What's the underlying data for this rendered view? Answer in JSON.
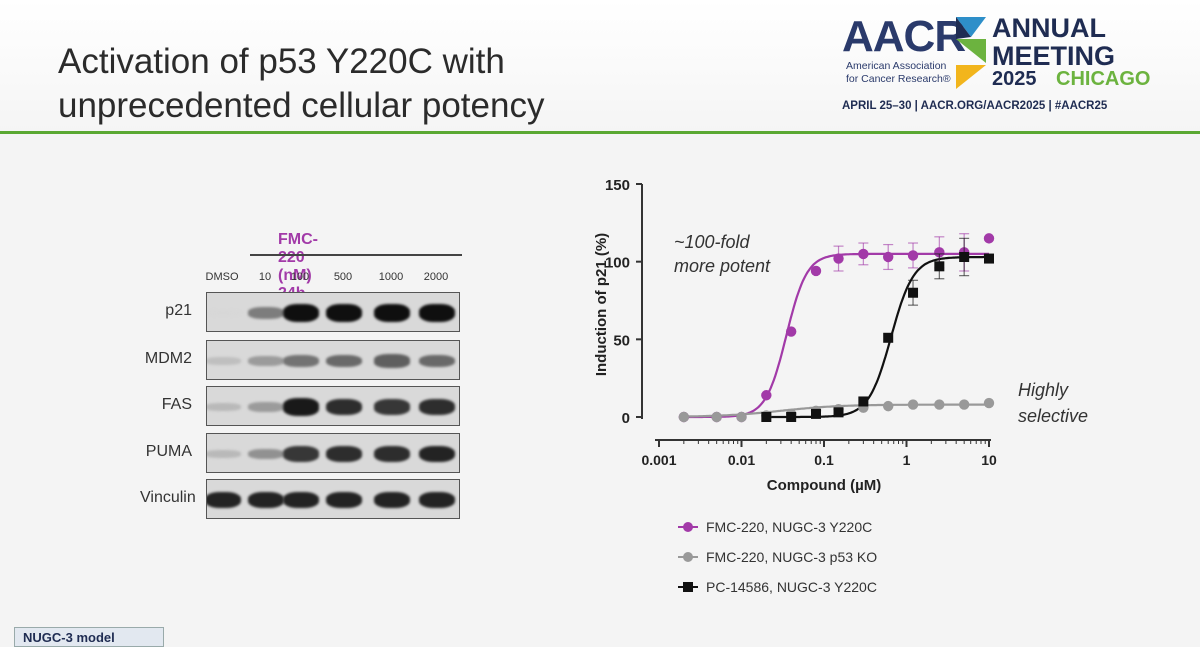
{
  "slide": {
    "title_line1": "Activation of p53 Y220C with",
    "title_line2": "unprecedented cellular potency",
    "footer_tag": "NUGC-3 model"
  },
  "logo": {
    "aacr": "AACR",
    "assoc_line1": "American Association",
    "assoc_line2": "for Cancer Research®",
    "annual": "ANNUAL",
    "meeting": "MEETING",
    "year": "2025",
    "city": "CHICAGO",
    "dates": "APRIL 25–30  |  AACR.ORG/AACR2025  |  #AACR25",
    "colors": {
      "navy": "#1f2c52",
      "green": "#6cb33f",
      "accent_line": "#5aa832"
    }
  },
  "blot": {
    "treatment_label": "FMC-220 (nM) 24h",
    "lanes": [
      "DMSO",
      "10",
      "100",
      "500",
      "1000",
      "2000"
    ],
    "rows": [
      {
        "label": "p21",
        "intensity": [
          0.0,
          0.45,
          1.0,
          1.0,
          1.0,
          1.0
        ]
      },
      {
        "label": "MDM2",
        "intensity": [
          0.12,
          0.3,
          0.5,
          0.55,
          0.6,
          0.55
        ]
      },
      {
        "label": "FAS",
        "intensity": [
          0.15,
          0.3,
          0.95,
          0.85,
          0.8,
          0.85
        ]
      },
      {
        "label": "PUMA",
        "intensity": [
          0.15,
          0.35,
          0.8,
          0.85,
          0.85,
          0.9
        ]
      },
      {
        "label": "Vinculin",
        "intensity": [
          0.9,
          0.9,
          0.9,
          0.9,
          0.9,
          0.9
        ]
      }
    ]
  },
  "chart_data": {
    "type": "scatter",
    "xlabel": "Compound (µM)",
    "ylabel": "Induction of p21 (%)",
    "x_scale": "log",
    "xlim": [
      0.001,
      10
    ],
    "ylim": [
      0,
      150
    ],
    "x_ticks": [
      "0.001",
      "0.01",
      "0.1",
      "1",
      "10"
    ],
    "y_ticks": [
      "0",
      "50",
      "100",
      "150"
    ],
    "grid": false,
    "annotations": [
      {
        "text_line1": "~100-fold",
        "text_line2": "more potent"
      },
      {
        "text_line1": "Highly",
        "text_line2": "selective"
      }
    ],
    "series": [
      {
        "name": "FMC-220, NUGC-3 Y220C",
        "color": "#a23aa8",
        "marker": "circle",
        "x": [
          0.002,
          0.005,
          0.01,
          0.02,
          0.04,
          0.08,
          0.15,
          0.3,
          0.6,
          1.2,
          2.5,
          5,
          10
        ],
        "y": [
          0,
          0,
          0,
          14,
          55,
          94,
          102,
          105,
          103,
          104,
          106,
          106,
          115
        ],
        "err": [
          0,
          0,
          0,
          0,
          0,
          0,
          8,
          7,
          8,
          8,
          10,
          12,
          0
        ],
        "fit": {
          "bottom": 0,
          "top": 105,
          "ec50": 0.035,
          "hill": 3.5
        }
      },
      {
        "name": "FMC-220, NUGC-3 p53 KO",
        "color": "#999999",
        "marker": "circle",
        "x": [
          0.002,
          0.005,
          0.01,
          0.02,
          0.04,
          0.08,
          0.15,
          0.3,
          0.6,
          1.2,
          2.5,
          5,
          10
        ],
        "y": [
          0,
          0,
          0,
          1,
          2,
          4,
          5,
          6,
          7,
          8,
          8,
          8,
          9
        ],
        "err": [
          0,
          0,
          0,
          0,
          0,
          0,
          0,
          0,
          0,
          0,
          0,
          0,
          0
        ],
        "fit": {
          "bottom": 0,
          "top": 8,
          "ec50": 0.03,
          "hill": 1.2
        }
      },
      {
        "name": "PC-14586, NUGC-3 Y220C",
        "color": "#111111",
        "marker": "square",
        "x": [
          0.02,
          0.04,
          0.08,
          0.15,
          0.3,
          0.6,
          1.2,
          2.5,
          5,
          10
        ],
        "y": [
          0,
          0,
          2,
          3,
          10,
          51,
          80,
          97,
          103,
          102
        ],
        "err": [
          0,
          0,
          0,
          0,
          0,
          0,
          8,
          8,
          12,
          0
        ],
        "fit": {
          "bottom": 0,
          "top": 103,
          "ec50": 0.65,
          "hill": 3.2
        }
      }
    ]
  }
}
